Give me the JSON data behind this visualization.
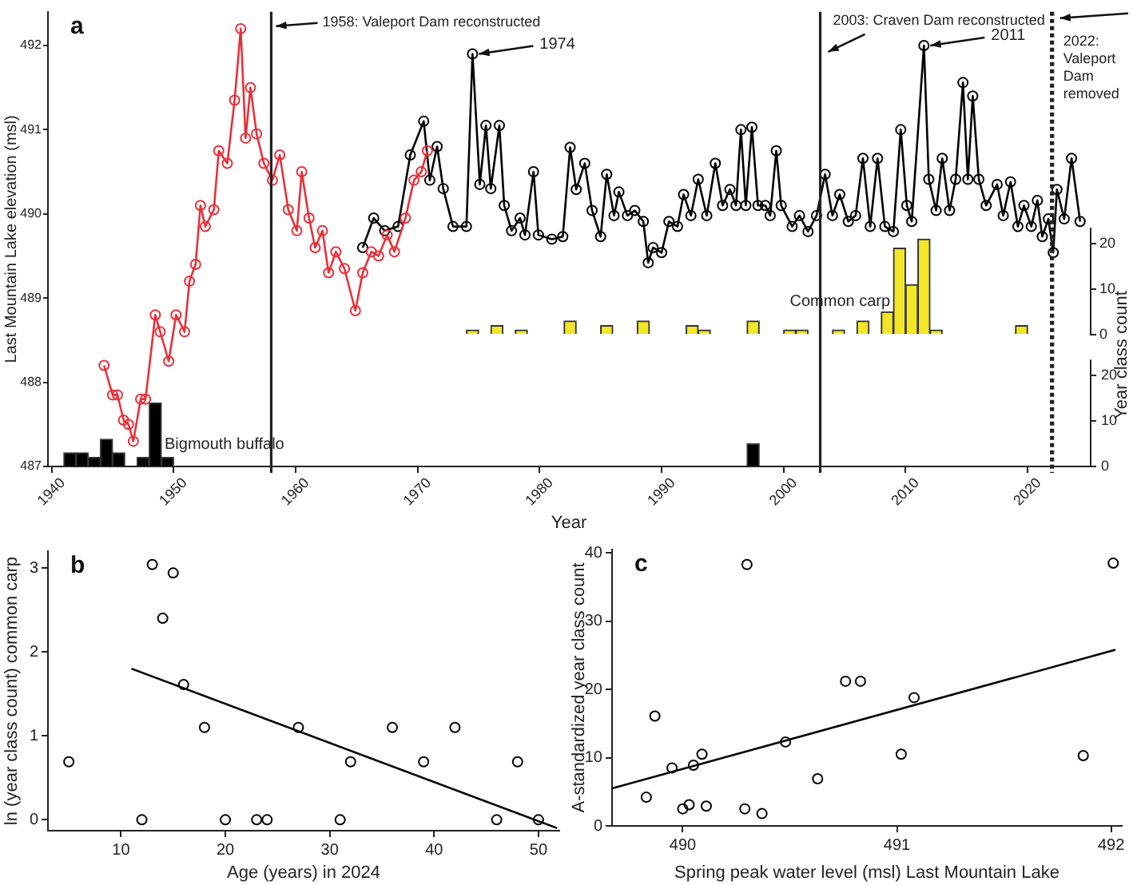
{
  "chart_data": [
    {
      "type": "line",
      "xlabel": "Year",
      "ylabel": "Last Mountain Lake elevation (msl)",
      "y2label": "Year class count",
      "xlim": [
        1939.7,
        2025.1
      ],
      "xticks": [
        1940,
        1950,
        1960,
        1970,
        1980,
        1990,
        2000,
        2010,
        2020
      ],
      "ylim": [
        487,
        492.4
      ],
      "yticks": [
        487,
        488,
        489,
        490,
        491,
        492
      ],
      "y2lim": [
        -29,
        71
      ],
      "y2ticks": [
        0,
        10,
        20
      ],
      "y3lim": [
        0,
        100
      ],
      "y3ticks": [
        0,
        10,
        20
      ],
      "marker": "circle",
      "annotations": [
        "a",
        {
          "text": "1974",
          "x": 1974.5,
          "y": 491.9
        },
        {
          "text": "2011",
          "x": 2011.5,
          "y": 492
        }
      ],
      "ref_lines": [
        {
          "axis": "x",
          "value": 1958,
          "label": "1958: Valeport Dam reconstructed"
        },
        {
          "axis": "x",
          "value": 2003,
          "label": "2003: Craven Dam reconstructed"
        },
        {
          "axis": "x",
          "value": 2022,
          "label": "2022: Valeport Dam removed",
          "line_style": "dotted"
        }
      ],
      "series": [
        {
          "color": "#e8303a",
          "x": [
            1944.3,
            1945,
            1945.4,
            1945.9,
            1946.3,
            1946.7,
            1947.3,
            1947.7,
            1948.5,
            1948.9,
            1949.6,
            1950.2,
            1950.9,
            1951.3,
            1951.8,
            1952.2,
            1952.6,
            1953.3,
            1953.7,
            1954.4,
            1955,
            1955.5,
            1955.9,
            1956.3,
            1956.8,
            1957.4,
            1958.1,
            1958.7,
            1959.4,
            1960.1,
            1960.5,
            1961.1,
            1961.6,
            1962.2,
            1962.7,
            1963.3,
            1964,
            1964.9,
            1965.5,
            1966.2,
            1966.8,
            1967.5,
            1968.1,
            1969,
            1969.7,
            1970.3,
            1970.8
          ],
          "values": [
            488.2,
            487.85,
            487.85,
            487.55,
            487.5,
            487.3,
            487.8,
            487.8,
            488.8,
            488.6,
            488.25,
            488.8,
            488.6,
            489.2,
            489.4,
            490.1,
            489.85,
            490.05,
            490.75,
            490.6,
            491.35,
            492.2,
            490.9,
            491.5,
            490.95,
            490.6,
            490.4,
            490.7,
            490.05,
            489.8,
            490.5,
            489.95,
            489.6,
            489.8,
            489.3,
            489.55,
            489.35,
            488.85,
            489.3,
            489.55,
            489.5,
            489.75,
            489.55,
            489.95,
            490.4,
            490.5,
            490.75
          ]
        },
        {
          "color": "#000000",
          "x": [
            1965.5,
            1966.4,
            1967.3,
            1968.4,
            1969.4,
            1970.5,
            1971,
            1971.6,
            1972.1,
            1972.9,
            1974,
            1974.5,
            1975.1,
            1975.6,
            1976,
            1976.7,
            1977.1,
            1977.7,
            1978.4,
            1978.8,
            1979.5,
            1979.9,
            1981,
            1981.9,
            1982.5,
            1983,
            1983.7,
            1984.3,
            1985,
            1985.5,
            1986.1,
            1986.5,
            1987.2,
            1987.8,
            1988.5,
            1988.9,
            1989.3,
            1990,
            1990.6,
            1991.3,
            1991.8,
            1992.4,
            1993,
            1993.7,
            1994.4,
            1995,
            1995.6,
            1996.1,
            1996.5,
            1996.9,
            1997.4,
            1997.9,
            1998.5,
            1998.9,
            1999.4,
            1999.8,
            2000.7,
            2001.3,
            2002,
            2002.7,
            2003.4,
            2004,
            2004.6,
            2005.3,
            2005.9,
            2006.5,
            2007.1,
            2007.7,
            2008.3,
            2009,
            2009.6,
            2010.1,
            2010.5,
            2011.5,
            2011.9,
            2012.5,
            2013,
            2013.6,
            2014.1,
            2014.7,
            2015.1,
            2015.5,
            2016,
            2016.6,
            2017.5,
            2018,
            2018.6,
            2019.2,
            2019.7,
            2020.3,
            2020.8,
            2021.2,
            2021.7,
            2022.1,
            2022.4,
            2023,
            2023.6,
            2024.3
          ],
          "values": [
            489.6,
            489.95,
            489.8,
            489.85,
            490.7,
            491.1,
            490.4,
            490.8,
            490.3,
            489.85,
            489.85,
            491.9,
            490.35,
            491.05,
            490.3,
            491.05,
            490.1,
            489.8,
            489.95,
            489.75,
            490.5,
            489.75,
            489.7,
            489.73,
            490.79,
            490.29,
            490.6,
            490.04,
            489.73,
            490.47,
            489.98,
            490.26,
            489.98,
            490.04,
            489.91,
            489.42,
            489.6,
            489.54,
            489.91,
            489.85,
            490.23,
            489.98,
            490.41,
            489.98,
            490.6,
            490.1,
            490.29,
            490.1,
            491,
            490.1,
            491.03,
            490.1,
            490.1,
            489.98,
            490.75,
            490.1,
            489.85,
            489.98,
            489.79,
            489.98,
            490.47,
            489.98,
            490.23,
            489.91,
            489.98,
            490.66,
            489.85,
            490.66,
            489.85,
            489.79,
            491,
            490.1,
            489.91,
            492,
            490.41,
            490.04,
            490.66,
            490.04,
            490.41,
            491.56,
            490.41,
            491.4,
            490.41,
            490.1,
            490.35,
            489.98,
            490.38,
            489.85,
            490.1,
            489.85,
            490.16,
            489.73,
            489.94,
            489.54,
            490.29,
            489.94,
            490.66,
            489.91
          ]
        },
        {
          "type": "bar",
          "name": "Common carp",
          "color": "#f2e627",
          "axis": "y2",
          "x": [
            1974.5,
            1976.5,
            1978.5,
            1982.5,
            1985.5,
            1988.5,
            1992.5,
            1993.5,
            1997.5,
            2000.5,
            2001.5,
            2004.5,
            2006.5,
            2008.5,
            2009.5,
            2010.5,
            2011.5,
            2012.5,
            2019.5
          ],
          "values": [
            1,
            2,
            1,
            3,
            2,
            3,
            2,
            1,
            3,
            1,
            1,
            1,
            3,
            5,
            19,
            11,
            21,
            1,
            2
          ]
        },
        {
          "type": "bar",
          "name": "Bigmouth buffalo",
          "color": "#000000",
          "axis": "y3",
          "x": [
            1941.5,
            1942.5,
            1943.5,
            1944.5,
            1945.5,
            1947.5,
            1948.5,
            1949.5,
            1997.5
          ],
          "values": [
            3,
            3,
            2,
            6,
            3,
            2,
            14,
            2,
            5
          ]
        }
      ]
    },
    {
      "type": "scatter",
      "annotations": [
        "b"
      ],
      "xlabel": "Age (years) in 2024",
      "ylabel": "ln (year class count) common carp",
      "xlim": [
        3,
        52
      ],
      "xticks": [
        10,
        20,
        30,
        40,
        50
      ],
      "ylim": [
        -0.13,
        3.2
      ],
      "yticks": [
        0,
        1,
        2,
        3
      ],
      "marker": "circle",
      "series": [
        {
          "color": "#000000",
          "x": [
            13,
            14,
            15,
            16,
            18,
            20,
            23,
            24,
            27,
            31,
            32,
            36,
            39,
            42,
            46,
            48,
            50
          ],
          "values": [
            3.04,
            2.4,
            2.94,
            1.61,
            1.1,
            0,
            0,
            0,
            1.1,
            0,
            0.69,
            1.1,
            0.69,
            1.1,
            0,
            0.69,
            0
          ]
        },
        {
          "color": "#000000",
          "x": [
            5,
            12
          ],
          "values": [
            0.69,
            0
          ]
        },
        {
          "type": "line",
          "marker": "none",
          "color": "#000000",
          "x": [
            11,
            51.8
          ],
          "values": [
            1.8,
            -0.1
          ]
        }
      ]
    },
    {
      "type": "scatter",
      "annotations": [
        "c"
      ],
      "xlabel": "Spring peak water level (msl) Last Mountain Lake",
      "ylabel": "A-standardized year class count",
      "xlim": [
        489.67,
        492.05
      ],
      "xticks": [
        490,
        491,
        492
      ],
      "ylim": [
        0,
        40.5
      ],
      "yticks": [
        0,
        10,
        20,
        30,
        40
      ],
      "marker": "circle",
      "series": [
        {
          "color": "#000000",
          "x": [
            489.83,
            489.87,
            489.95,
            490,
            490.03,
            490.05,
            490.09,
            490.11,
            490.29,
            490.3,
            490.37,
            490.48,
            490.63,
            490.76,
            490.83,
            491.02,
            491.08,
            491.87,
            492.01
          ],
          "values": [
            4.2,
            16.1,
            8.5,
            2.5,
            3.1,
            8.9,
            10.5,
            2.9,
            2.5,
            38.3,
            1.8,
            12.3,
            6.9,
            21.2,
            21.2,
            10.5,
            18.8,
            10.3,
            38.5
          ]
        },
        {
          "type": "line",
          "marker": "none",
          "color": "#000000",
          "x": [
            489.67,
            492.02
          ],
          "values": [
            5.5,
            25.8
          ]
        }
      ]
    }
  ]
}
